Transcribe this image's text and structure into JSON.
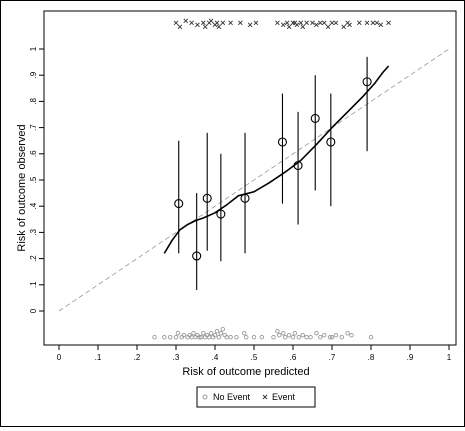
{
  "chart_data": {
    "type": "scatter",
    "title": "",
    "xlabel": "Risk of outcome predicted",
    "ylabel": "Risk of outcome observed",
    "xlim": [
      0,
      1
    ],
    "ylim": [
      -0.12,
      1.1
    ],
    "x_ticks": [
      0,
      0.1,
      0.2,
      0.3,
      0.4,
      0.5,
      0.6,
      0.7,
      0.8,
      0.9,
      1
    ],
    "x_tick_labels": [
      "0",
      ".1",
      ".2",
      ".3",
      ".4",
      ".5",
      ".6",
      ".7",
      ".8",
      ".9",
      "1"
    ],
    "y_ticks": [
      0,
      0.1,
      0.2,
      0.3,
      0.4,
      0.5,
      0.6,
      0.7,
      0.8,
      0.9,
      1
    ],
    "y_tick_labels": [
      "0",
      ".1",
      ".2",
      ".3",
      ".4",
      ".5",
      ".6",
      ".7",
      ".8",
      ".9",
      "1"
    ],
    "grid": false,
    "legend_position": "bottom",
    "legend": [
      {
        "label": "No Event",
        "marker": "circle-small",
        "color": "#999999"
      },
      {
        "label": "Event",
        "marker": "x",
        "color": "#333333"
      }
    ],
    "reference_line": {
      "x": [
        0,
        1
      ],
      "y": [
        0,
        1
      ],
      "style": "dashed",
      "color": "#999999"
    },
    "smooth_curve": {
      "x": [
        0.27,
        0.29,
        0.31,
        0.33,
        0.35,
        0.37,
        0.4,
        0.43,
        0.46,
        0.5,
        0.54,
        0.58,
        0.62,
        0.66,
        0.7,
        0.74,
        0.78,
        0.81,
        0.83,
        0.845
      ],
      "y": [
        0.22,
        0.27,
        0.31,
        0.33,
        0.345,
        0.355,
        0.375,
        0.405,
        0.44,
        0.455,
        0.49,
        0.53,
        0.575,
        0.635,
        0.7,
        0.76,
        0.82,
        0.87,
        0.91,
        0.935
      ],
      "color": "#000000"
    },
    "grouped_points": [
      {
        "x": 0.307,
        "y": 0.41,
        "lo": 0.22,
        "hi": 0.65
      },
      {
        "x": 0.353,
        "y": 0.21,
        "lo": 0.08,
        "hi": 0.45
      },
      {
        "x": 0.38,
        "y": 0.43,
        "lo": 0.23,
        "hi": 0.68
      },
      {
        "x": 0.415,
        "y": 0.37,
        "lo": 0.19,
        "hi": 0.6
      },
      {
        "x": 0.477,
        "y": 0.43,
        "lo": 0.22,
        "hi": 0.68
      },
      {
        "x": 0.573,
        "y": 0.645,
        "lo": 0.41,
        "hi": 0.83
      },
      {
        "x": 0.613,
        "y": 0.555,
        "lo": 0.33,
        "hi": 0.76
      },
      {
        "x": 0.657,
        "y": 0.735,
        "lo": 0.46,
        "hi": 0.9
      },
      {
        "x": 0.697,
        "y": 0.645,
        "lo": 0.4,
        "hi": 0.83
      },
      {
        "x": 0.79,
        "y": 0.875,
        "lo": 0.61,
        "hi": 0.97
      }
    ],
    "event_rug": {
      "y": 1.1,
      "x": [
        0.3,
        0.31,
        0.325,
        0.34,
        0.355,
        0.37,
        0.375,
        0.385,
        0.39,
        0.4,
        0.405,
        0.41,
        0.42,
        0.44,
        0.465,
        0.49,
        0.505,
        0.56,
        0.575,
        0.585,
        0.59,
        0.6,
        0.605,
        0.61,
        0.62,
        0.625,
        0.635,
        0.65,
        0.66,
        0.67,
        0.68,
        0.69,
        0.7,
        0.71,
        0.73,
        0.74,
        0.745,
        0.77,
        0.79,
        0.805,
        0.815,
        0.825,
        0.845
      ],
      "jitter": [
        0,
        0.02,
        -0.01,
        0,
        0.01,
        0,
        0.02,
        0,
        -0.01,
        0.01,
        0,
        0.02,
        0,
        0,
        0,
        0.01,
        0,
        0,
        0.01,
        0,
        0.02,
        0,
        0,
        0.01,
        0,
        0.02,
        0,
        0,
        0.01,
        0,
        0,
        0.02,
        0,
        0,
        0.02,
        0,
        0.01,
        0,
        0,
        0,
        0,
        0.01,
        0
      ]
    },
    "no_event_rug": {
      "y": -0.1,
      "x": [
        0.245,
        0.27,
        0.285,
        0.3,
        0.305,
        0.315,
        0.32,
        0.33,
        0.335,
        0.34,
        0.345,
        0.35,
        0.355,
        0.36,
        0.365,
        0.37,
        0.375,
        0.38,
        0.385,
        0.39,
        0.395,
        0.4,
        0.405,
        0.41,
        0.415,
        0.42,
        0.425,
        0.43,
        0.44,
        0.455,
        0.475,
        0.48,
        0.5,
        0.52,
        0.55,
        0.56,
        0.565,
        0.575,
        0.58,
        0.59,
        0.6,
        0.605,
        0.615,
        0.625,
        0.635,
        0.645,
        0.66,
        0.67,
        0.68,
        0.695,
        0.7,
        0.71,
        0.725,
        0.74,
        0.75,
        0.8
      ],
      "jitter": [
        0,
        0,
        0,
        0,
        0.02,
        0,
        0.01,
        0,
        0.01,
        0,
        0.02,
        0,
        0.01,
        0,
        0,
        0.02,
        0,
        0.01,
        0,
        0.02,
        0,
        0.01,
        0.03,
        0,
        0.02,
        0.04,
        0.01,
        0,
        0,
        0,
        0.02,
        0,
        0,
        0,
        0,
        0.03,
        0.01,
        0.02,
        0,
        0.01,
        0,
        0.02,
        0,
        0.01,
        0,
        0,
        0.02,
        0,
        0.01,
        0,
        0,
        0.01,
        0,
        0.02,
        0.01,
        0
      ]
    }
  }
}
